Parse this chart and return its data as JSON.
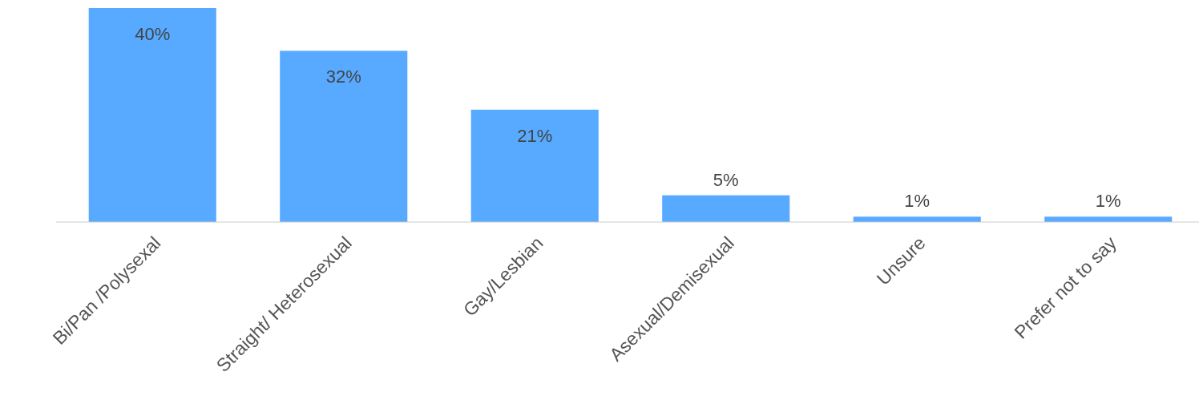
{
  "chart_data": {
    "type": "bar",
    "categories": [
      "Bi/Pan /Polysexal",
      "Straight/ Heterosexual",
      "Gay/Lesbian",
      "Asexual/Demisexual",
      "Unsure",
      "Prefer not to say"
    ],
    "values": [
      40,
      32,
      21,
      5,
      1,
      1
    ],
    "value_labels": [
      "40%",
      "32%",
      "21%",
      "5%",
      "1%",
      "1%"
    ],
    "color": "#57aaff"
  }
}
